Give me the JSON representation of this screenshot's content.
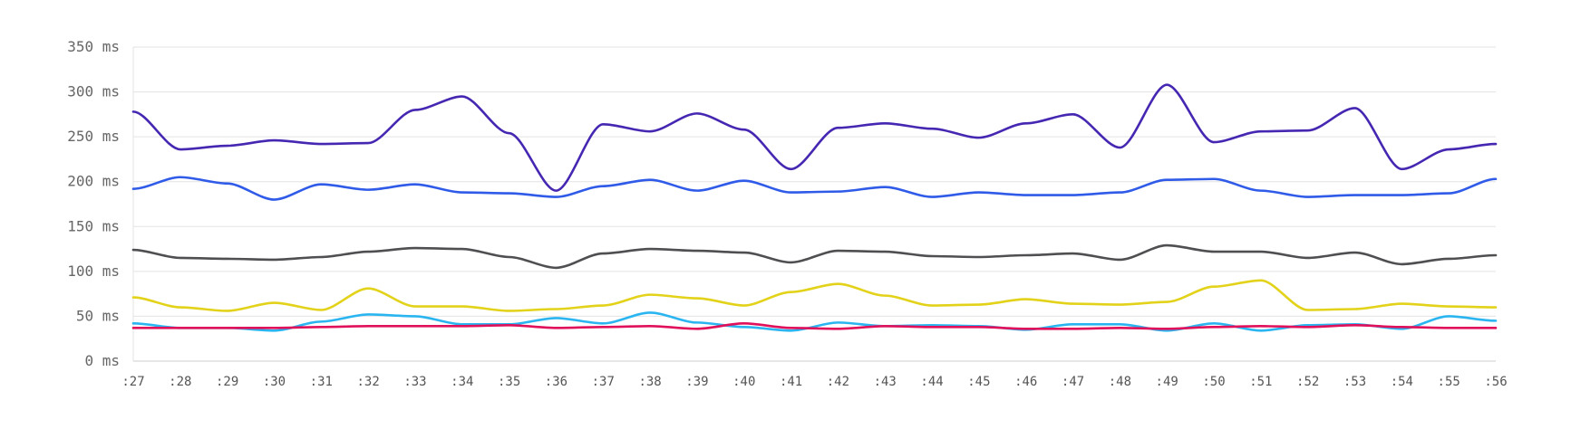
{
  "chart_data": {
    "type": "line",
    "title": "",
    "xlabel": "",
    "ylabel": "",
    "ylim": [
      0,
      350
    ],
    "y_ticks": [
      0,
      50,
      100,
      150,
      200,
      250,
      300,
      350
    ],
    "y_tick_labels": [
      "0 ms",
      "50 ms",
      "100 ms",
      "150 ms",
      "200 ms",
      "250 ms",
      "300 ms",
      "350 ms"
    ],
    "grid": true,
    "legend": "none",
    "categories": [
      ":27",
      ":28",
      ":29",
      ":30",
      ":31",
      ":32",
      ":33",
      ":34",
      ":35",
      ":36",
      ":37",
      ":38",
      ":39",
      ":40",
      ":41",
      ":42",
      ":43",
      ":44",
      ":45",
      ":46",
      ":47",
      ":48",
      ":49",
      ":50",
      ":51",
      ":52",
      ":53",
      ":54",
      ":55",
      ":56"
    ],
    "series": [
      {
        "name": "purple",
        "color": "#4527b2",
        "values": [
          278,
          236,
          240,
          246,
          242,
          243,
          280,
          295,
          254,
          190,
          264,
          256,
          276,
          258,
          214,
          260,
          265,
          259,
          249,
          265,
          275,
          238,
          308,
          244,
          256,
          257,
          282,
          214,
          236,
          242
        ]
      },
      {
        "name": "blue",
        "color": "#2f5be8",
        "values": [
          192,
          205,
          198,
          180,
          197,
          191,
          197,
          188,
          187,
          183,
          195,
          202,
          190,
          201,
          188,
          189,
          194,
          183,
          188,
          185,
          185,
          188,
          202,
          203,
          190,
          183,
          185,
          185,
          187,
          203
        ]
      },
      {
        "name": "gray",
        "color": "#4f4f52",
        "values": [
          124,
          115,
          114,
          113,
          116,
          122,
          126,
          125,
          116,
          104,
          120,
          125,
          123,
          121,
          110,
          123,
          122,
          117,
          116,
          118,
          120,
          113,
          129,
          122,
          122,
          115,
          121,
          108,
          114,
          118
        ]
      },
      {
        "name": "yellow",
        "color": "#e3d21a",
        "values": [
          71,
          60,
          56,
          65,
          57,
          81,
          61,
          61,
          56,
          58,
          62,
          74,
          70,
          62,
          77,
          86,
          73,
          62,
          63,
          69,
          64,
          63,
          66,
          83,
          90,
          57,
          58,
          64,
          61,
          60
        ]
      },
      {
        "name": "cyan",
        "color": "#2bb5f0",
        "values": [
          42,
          37,
          37,
          34,
          44,
          52,
          50,
          41,
          41,
          48,
          42,
          54,
          43,
          38,
          34,
          43,
          39,
          40,
          39,
          35,
          41,
          41,
          34,
          42,
          34,
          40,
          41,
          36,
          50,
          45
        ]
      },
      {
        "name": "crimson",
        "color": "#e0105a",
        "values": [
          37,
          37,
          37,
          37,
          38,
          39,
          39,
          39,
          40,
          37,
          38,
          39,
          36,
          42,
          37,
          36,
          39,
          38,
          38,
          36,
          36,
          37,
          36,
          38,
          39,
          38,
          40,
          38,
          37,
          37
        ]
      }
    ]
  }
}
